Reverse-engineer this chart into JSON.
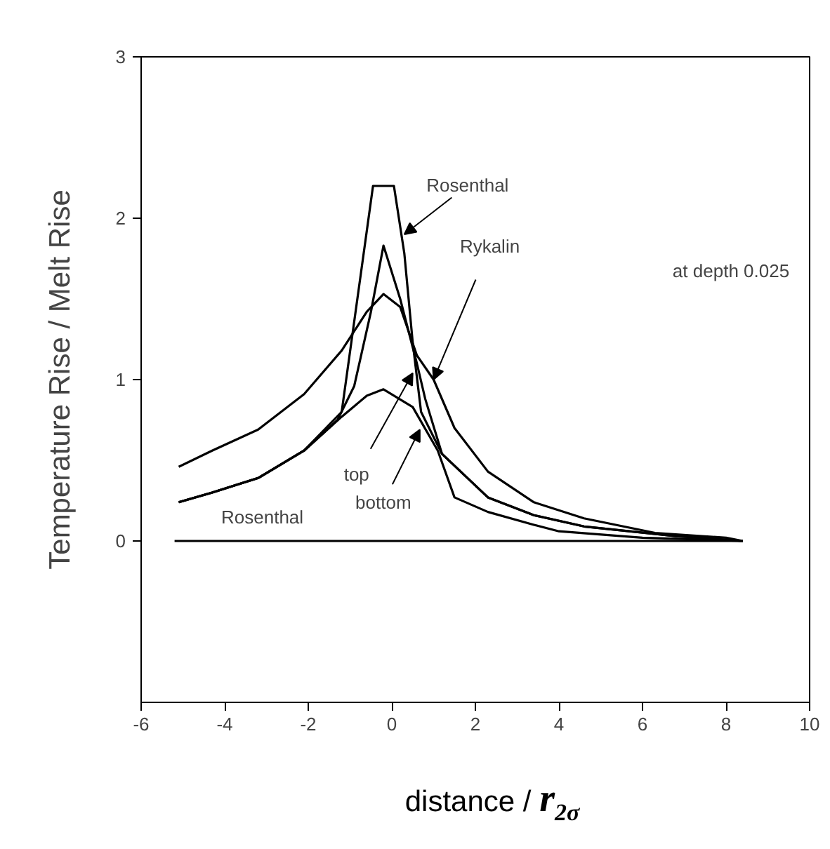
{
  "chart_data": {
    "type": "line",
    "xlabel": "distance / r$_{2σ}$",
    "ylabel": "Temperature Rise / Melt Rise",
    "xlim": [
      -6,
      10
    ],
    "xticks": [
      -6,
      -4,
      -2,
      0,
      2,
      4,
      6,
      8,
      10
    ],
    "ylim": [
      -1,
      3
    ],
    "yticks": [
      0,
      1,
      2,
      3
    ],
    "grid": false,
    "marker": "none",
    "line_style": "solid",
    "series": [
      {
        "color": "#000000",
        "x": [
          -5.2,
          8.35
        ],
        "values": [
          0,
          0
        ]
      },
      {
        "color": "#000000",
        "x": [
          -5.1,
          -4.3,
          -3.2,
          -2.1,
          -1.2,
          -0.6,
          -0.2,
          0.2,
          0.6,
          1.0,
          1.5,
          2.3,
          3.4,
          4.6,
          6.3,
          8.0,
          8.4
        ],
        "values": [
          0.46,
          0.56,
          0.69,
          0.91,
          1.18,
          1.42,
          1.53,
          1.45,
          1.15,
          1.0,
          0.7,
          0.43,
          0.24,
          0.14,
          0.05,
          0.02,
          0
        ]
      },
      {
        "color": "#000000",
        "x": [
          -5.1,
          -4.3,
          -3.2,
          -2.1,
          -1.2,
          -0.45,
          0.05,
          0.3,
          0.5,
          0.7,
          1.2,
          2.3,
          3.4,
          4.6,
          6.8,
          8.4
        ],
        "values": [
          0.24,
          0.3,
          0.39,
          0.56,
          0.8,
          2.2,
          2.2,
          1.78,
          1.23,
          0.8,
          0.54,
          0.27,
          0.16,
          0.09,
          0.03,
          0
        ]
      },
      {
        "color": "#000000",
        "x": [
          -5.1,
          -4.3,
          -3.2,
          -2.1,
          -1.3,
          -0.9,
          -0.5,
          -0.2,
          0.2,
          0.6,
          0.8,
          1.2,
          2.3,
          3.4,
          4.6,
          6.8,
          8.4
        ],
        "values": [
          0.24,
          0.3,
          0.39,
          0.56,
          0.75,
          0.96,
          1.42,
          1.83,
          1.5,
          1.1,
          0.88,
          0.54,
          0.27,
          0.16,
          0.09,
          0.03,
          0
        ]
      },
      {
        "color": "#000000",
        "x": [
          -5.1,
          -4.3,
          -3.2,
          -2.1,
          -1.2,
          -0.6,
          -0.2,
          0.5,
          1.1,
          1.5,
          2.3,
          3.4,
          4.0,
          6.0,
          8.4
        ],
        "values": [
          0.24,
          0.3,
          0.39,
          0.56,
          0.77,
          0.9,
          0.94,
          0.83,
          0.56,
          0.27,
          0.18,
          0.1,
          0.06,
          0.02,
          0
        ]
      }
    ],
    "annotations": [
      {
        "text": "Rosenthal",
        "x": 0.3,
        "y": 1.9
      },
      {
        "text": "Rykalin",
        "x": 1.0,
        "y": 1.0
      },
      "at depth 0.025",
      {
        "text": "top",
        "x": 0.5,
        "y": 1.04
      },
      {
        "text": "bottom",
        "x": 0.67,
        "y": 0.69
      },
      {
        "text": "Rosenthal",
        "x": -3.1,
        "y": 0.39
      }
    ]
  }
}
